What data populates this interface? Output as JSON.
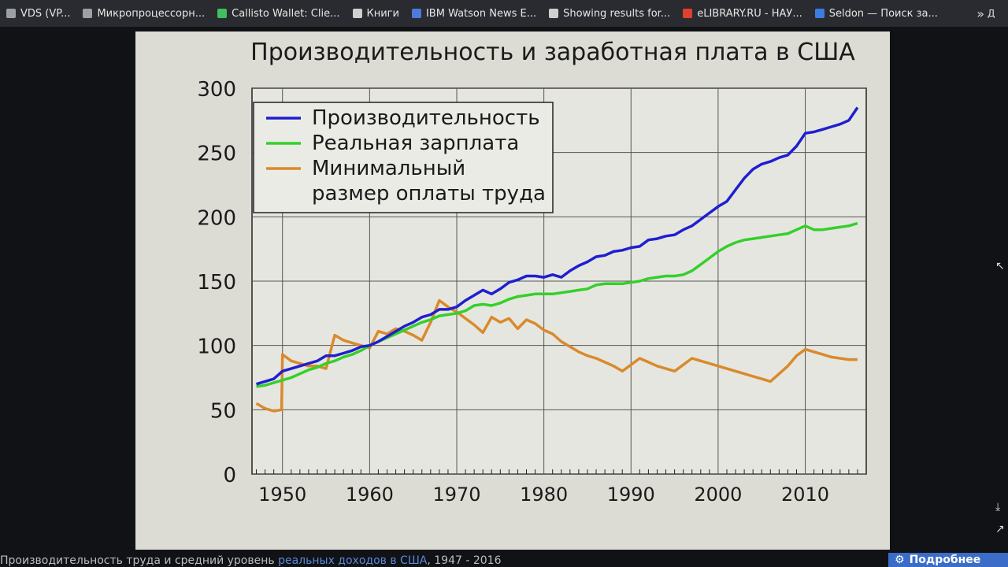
{
  "bookmarks": [
    {
      "label": "VDS (VP...",
      "icon": "page-icon",
      "color": "#9aa0a6"
    },
    {
      "label": "Микропроцессорн...",
      "icon": "page-icon",
      "color": "#9aa0a6"
    },
    {
      "label": "Callisto Wallet: Clie...",
      "icon": "callisto-icon",
      "color": "#3fbf5f"
    },
    {
      "label": "Книги",
      "icon": "globe-icon",
      "color": "#cfcfcf"
    },
    {
      "label": "IBM Watson News E...",
      "icon": "ibm-icon",
      "color": "#4c7bd9"
    },
    {
      "label": "Showing results for...",
      "icon": "nu-icon",
      "color": "#cfcfcf"
    },
    {
      "label": "eLIBRARY.RU - НАУ...",
      "icon": "elibrary-icon",
      "color": "#e0402f"
    },
    {
      "label": "Seldon — Поиск за...",
      "icon": "seldon-icon",
      "color": "#3b7de0"
    }
  ],
  "bookmarks_more": "»",
  "bookmarks_folder": "Д",
  "caption": {
    "before": "Производительность труда и средний уровень ",
    "link": "реальных доходов в США",
    "after": ", 1947 - 2016"
  },
  "more_button": "Подробнее",
  "chart_data": {
    "type": "line",
    "title": "Производительность и заработная плата в США",
    "xlabel": "",
    "ylabel": "",
    "xlim": [
      1946.5,
      2017
    ],
    "ylim": [
      0,
      300
    ],
    "x_ticks": [
      1950,
      1960,
      1970,
      1980,
      1990,
      2000,
      2010
    ],
    "y_ticks": [
      0,
      50,
      100,
      150,
      200,
      250,
      300
    ],
    "grid": true,
    "legend_position": "top-left",
    "series": [
      {
        "name": "Производительность",
        "color": "#1f1fd0",
        "points": [
          [
            1947,
            70
          ],
          [
            1948,
            72
          ],
          [
            1949,
            74
          ],
          [
            1950,
            80
          ],
          [
            1951,
            82
          ],
          [
            1952,
            84
          ],
          [
            1953,
            86
          ],
          [
            1954,
            88
          ],
          [
            1955,
            92
          ],
          [
            1956,
            92
          ],
          [
            1957,
            94
          ],
          [
            1958,
            96
          ],
          [
            1959,
            99
          ],
          [
            1960,
            100
          ],
          [
            1961,
            103
          ],
          [
            1962,
            107
          ],
          [
            1963,
            111
          ],
          [
            1964,
            115
          ],
          [
            1965,
            118
          ],
          [
            1966,
            122
          ],
          [
            1967,
            124
          ],
          [
            1968,
            128
          ],
          [
            1969,
            128
          ],
          [
            1970,
            130
          ],
          [
            1971,
            135
          ],
          [
            1972,
            139
          ],
          [
            1973,
            143
          ],
          [
            1974,
            140
          ],
          [
            1975,
            144
          ],
          [
            1976,
            149
          ],
          [
            1977,
            151
          ],
          [
            1978,
            154
          ],
          [
            1979,
            154
          ],
          [
            1980,
            153
          ],
          [
            1981,
            155
          ],
          [
            1982,
            153
          ],
          [
            1983,
            158
          ],
          [
            1984,
            162
          ],
          [
            1985,
            165
          ],
          [
            1986,
            169
          ],
          [
            1987,
            170
          ],
          [
            1988,
            173
          ],
          [
            1989,
            174
          ],
          [
            1990,
            176
          ],
          [
            1991,
            177
          ],
          [
            1992,
            182
          ],
          [
            1993,
            183
          ],
          [
            1994,
            185
          ],
          [
            1995,
            186
          ],
          [
            1996,
            190
          ],
          [
            1997,
            193
          ],
          [
            1998,
            198
          ],
          [
            1999,
            203
          ],
          [
            2000,
            208
          ],
          [
            2001,
            212
          ],
          [
            2002,
            221
          ],
          [
            2003,
            230
          ],
          [
            2004,
            237
          ],
          [
            2005,
            241
          ],
          [
            2006,
            243
          ],
          [
            2007,
            246
          ],
          [
            2008,
            248
          ],
          [
            2009,
            255
          ],
          [
            2010,
            265
          ],
          [
            2011,
            266
          ],
          [
            2012,
            268
          ],
          [
            2013,
            270
          ],
          [
            2014,
            272
          ],
          [
            2015,
            275
          ],
          [
            2016,
            285
          ]
        ]
      },
      {
        "name": "Реальная зарплата",
        "color": "#34d02a",
        "points": [
          [
            1947,
            68
          ],
          [
            1948,
            69
          ],
          [
            1949,
            71
          ],
          [
            1950,
            73
          ],
          [
            1951,
            75
          ],
          [
            1952,
            78
          ],
          [
            1953,
            81
          ],
          [
            1954,
            83
          ],
          [
            1955,
            86
          ],
          [
            1956,
            88
          ],
          [
            1957,
            91
          ],
          [
            1958,
            93
          ],
          [
            1959,
            96
          ],
          [
            1960,
            100
          ],
          [
            1961,
            103
          ],
          [
            1962,
            106
          ],
          [
            1963,
            109
          ],
          [
            1964,
            112
          ],
          [
            1965,
            115
          ],
          [
            1966,
            118
          ],
          [
            1967,
            120
          ],
          [
            1968,
            123
          ],
          [
            1969,
            124
          ],
          [
            1970,
            125
          ],
          [
            1971,
            127
          ],
          [
            1972,
            131
          ],
          [
            1973,
            132
          ],
          [
            1974,
            131
          ],
          [
            1975,
            133
          ],
          [
            1976,
            136
          ],
          [
            1977,
            138
          ],
          [
            1978,
            139
          ],
          [
            1979,
            140
          ],
          [
            1980,
            140
          ],
          [
            1981,
            140
          ],
          [
            1982,
            141
          ],
          [
            1983,
            142
          ],
          [
            1984,
            143
          ],
          [
            1985,
            144
          ],
          [
            1986,
            147
          ],
          [
            1987,
            148
          ],
          [
            1988,
            148
          ],
          [
            1989,
            148
          ],
          [
            1990,
            149
          ],
          [
            1991,
            150
          ],
          [
            1992,
            152
          ],
          [
            1993,
            153
          ],
          [
            1994,
            154
          ],
          [
            1995,
            154
          ],
          [
            1996,
            155
          ],
          [
            1997,
            158
          ],
          [
            1998,
            163
          ],
          [
            1999,
            168
          ],
          [
            2000,
            173
          ],
          [
            2001,
            177
          ],
          [
            2002,
            180
          ],
          [
            2003,
            182
          ],
          [
            2004,
            183
          ],
          [
            2005,
            184
          ],
          [
            2006,
            185
          ],
          [
            2007,
            186
          ],
          [
            2008,
            187
          ],
          [
            2009,
            190
          ],
          [
            2010,
            193
          ],
          [
            2011,
            190
          ],
          [
            2012,
            190
          ],
          [
            2013,
            191
          ],
          [
            2014,
            192
          ],
          [
            2015,
            193
          ],
          [
            2016,
            195
          ]
        ]
      },
      {
        "name": "Минимальный размер оплаты труда",
        "color": "#d98a2c",
        "points": [
          [
            1947,
            55
          ],
          [
            1948,
            51
          ],
          [
            1949,
            49
          ],
          [
            1949.9,
            50
          ],
          [
            1950,
            93
          ],
          [
            1951,
            88
          ],
          [
            1952,
            86
          ],
          [
            1953,
            84
          ],
          [
            1954,
            84
          ],
          [
            1955,
            82
          ],
          [
            1956,
            108
          ],
          [
            1957,
            104
          ],
          [
            1958,
            102
          ],
          [
            1959,
            100
          ],
          [
            1960,
            98
          ],
          [
            1961,
            111
          ],
          [
            1962,
            109
          ],
          [
            1963,
            113
          ],
          [
            1964,
            111
          ],
          [
            1965,
            108
          ],
          [
            1966,
            104
          ],
          [
            1967,
            118
          ],
          [
            1968,
            135
          ],
          [
            1969,
            130
          ],
          [
            1970,
            126
          ],
          [
            1971,
            121
          ],
          [
            1972,
            116
          ],
          [
            1973,
            110
          ],
          [
            1974,
            122
          ],
          [
            1975,
            118
          ],
          [
            1976,
            121
          ],
          [
            1977,
            113
          ],
          [
            1978,
            120
          ],
          [
            1979,
            117
          ],
          [
            1980,
            112
          ],
          [
            1981,
            109
          ],
          [
            1982,
            103
          ],
          [
            1983,
            99
          ],
          [
            1984,
            95
          ],
          [
            1985,
            92
          ],
          [
            1986,
            90
          ],
          [
            1987,
            87
          ],
          [
            1988,
            84
          ],
          [
            1989,
            80
          ],
          [
            1990,
            85
          ],
          [
            1991,
            90
          ],
          [
            1992,
            87
          ],
          [
            1993,
            84
          ],
          [
            1994,
            82
          ],
          [
            1995,
            80
          ],
          [
            1996,
            85
          ],
          [
            1997,
            90
          ],
          [
            1998,
            88
          ],
          [
            1999,
            86
          ],
          [
            2000,
            84
          ],
          [
            2001,
            82
          ],
          [
            2002,
            80
          ],
          [
            2003,
            78
          ],
          [
            2004,
            76
          ],
          [
            2005,
            74
          ],
          [
            2006,
            72
          ],
          [
            2007,
            78
          ],
          [
            2008,
            84
          ],
          [
            2009,
            92
          ],
          [
            2010,
            97
          ],
          [
            2011,
            95
          ],
          [
            2012,
            93
          ],
          [
            2013,
            91
          ],
          [
            2014,
            90
          ],
          [
            2015,
            89
          ],
          [
            2016,
            89
          ]
        ]
      }
    ]
  }
}
